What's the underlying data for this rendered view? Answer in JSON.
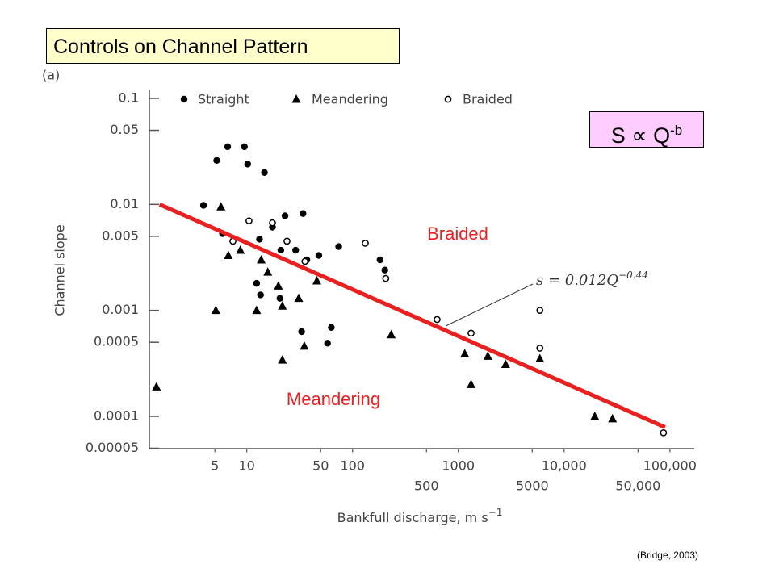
{
  "chart_data": {
    "type": "scatter",
    "title": "Controls on Channel Pattern",
    "panel_label": "(a)",
    "relation": {
      "text": "S ∝ Q",
      "sup": "-b"
    },
    "ylabel": "Channel slope",
    "xlabel": {
      "text": "Bankfull discharge, m s",
      "sup": "−1"
    },
    "region_labels": [
      "Braided",
      "Meandering"
    ],
    "fit_label": {
      "text": "s = 0.012Q",
      "sup": "−0.44"
    },
    "fit_line": {
      "color": "#e8201f",
      "x": [
        1.5,
        90000
      ],
      "values": [
        0.01,
        7.9e-05
      ]
    },
    "source": "(Bridge, 2003)",
    "xscale": "log",
    "yscale": "log",
    "xlim": [
      1.2,
      170000
    ],
    "ylim": [
      5e-05,
      0.12
    ],
    "xticks": [
      5,
      10,
      50,
      100,
      1000,
      {
        "value": 10000,
        "label": "10,000"
      },
      {
        "value": 100000,
        "label": "100,000"
      }
    ],
    "xticks_second_row": [
      500,
      5000,
      {
        "value": 50000,
        "label": "50,000"
      }
    ],
    "yticks": [
      0.1,
      0.05,
      0.01,
      0.005,
      0.001,
      0.0005,
      0.0001,
      5e-05
    ],
    "series": [
      {
        "name": "Straight",
        "marker": "filled-circle",
        "color": "#000000",
        "x": [
          5.2,
          6.6,
          9.5,
          10.2,
          14.7,
          3.9,
          5.9,
          23,
          34,
          17.5,
          13.2,
          21,
          29,
          48,
          74,
          37,
          12.4,
          13.5,
          20.6,
          33,
          63,
          58,
          182,
          202
        ],
        "values": [
          0.026,
          0.035,
          0.035,
          0.024,
          0.02,
          0.0098,
          0.0053,
          0.0078,
          0.0082,
          0.0061,
          0.0047,
          0.0037,
          0.0037,
          0.0033,
          0.004,
          0.003,
          0.0018,
          0.0014,
          0.0013,
          0.00063,
          0.00069,
          0.00049,
          0.003,
          0.0024
        ]
      },
      {
        "name": "Meandering",
        "marker": "triangle",
        "color": "#000000",
        "x": [
          1.4,
          5.7,
          5.1,
          6.7,
          8.7,
          13.7,
          15.8,
          12.4,
          19.9,
          21.7,
          31,
          46,
          21.7,
          35,
          232,
          1150,
          1900,
          2800,
          1320,
          5900,
          19500,
          28700
        ],
        "values": [
          0.00019,
          0.0095,
          0.001,
          0.0033,
          0.0037,
          0.003,
          0.0023,
          0.001,
          0.0017,
          0.0011,
          0.0013,
          0.0019,
          0.00034,
          0.00046,
          0.00059,
          0.00039,
          0.00037,
          0.00031,
          0.0002,
          0.00035,
          0.0001,
          9.5e-05
        ]
      },
      {
        "name": "Braided",
        "marker": "open-circle",
        "color": "#000000",
        "x": [
          7.4,
          10.5,
          17.5,
          24,
          35.5,
          132,
          206,
          630,
          1320,
          5900,
          5900,
          87000
        ],
        "values": [
          0.0045,
          0.007,
          0.0067,
          0.0045,
          0.0029,
          0.0043,
          0.002,
          0.00082,
          0.00061,
          0.001,
          0.00044,
          7e-05
        ]
      }
    ]
  }
}
